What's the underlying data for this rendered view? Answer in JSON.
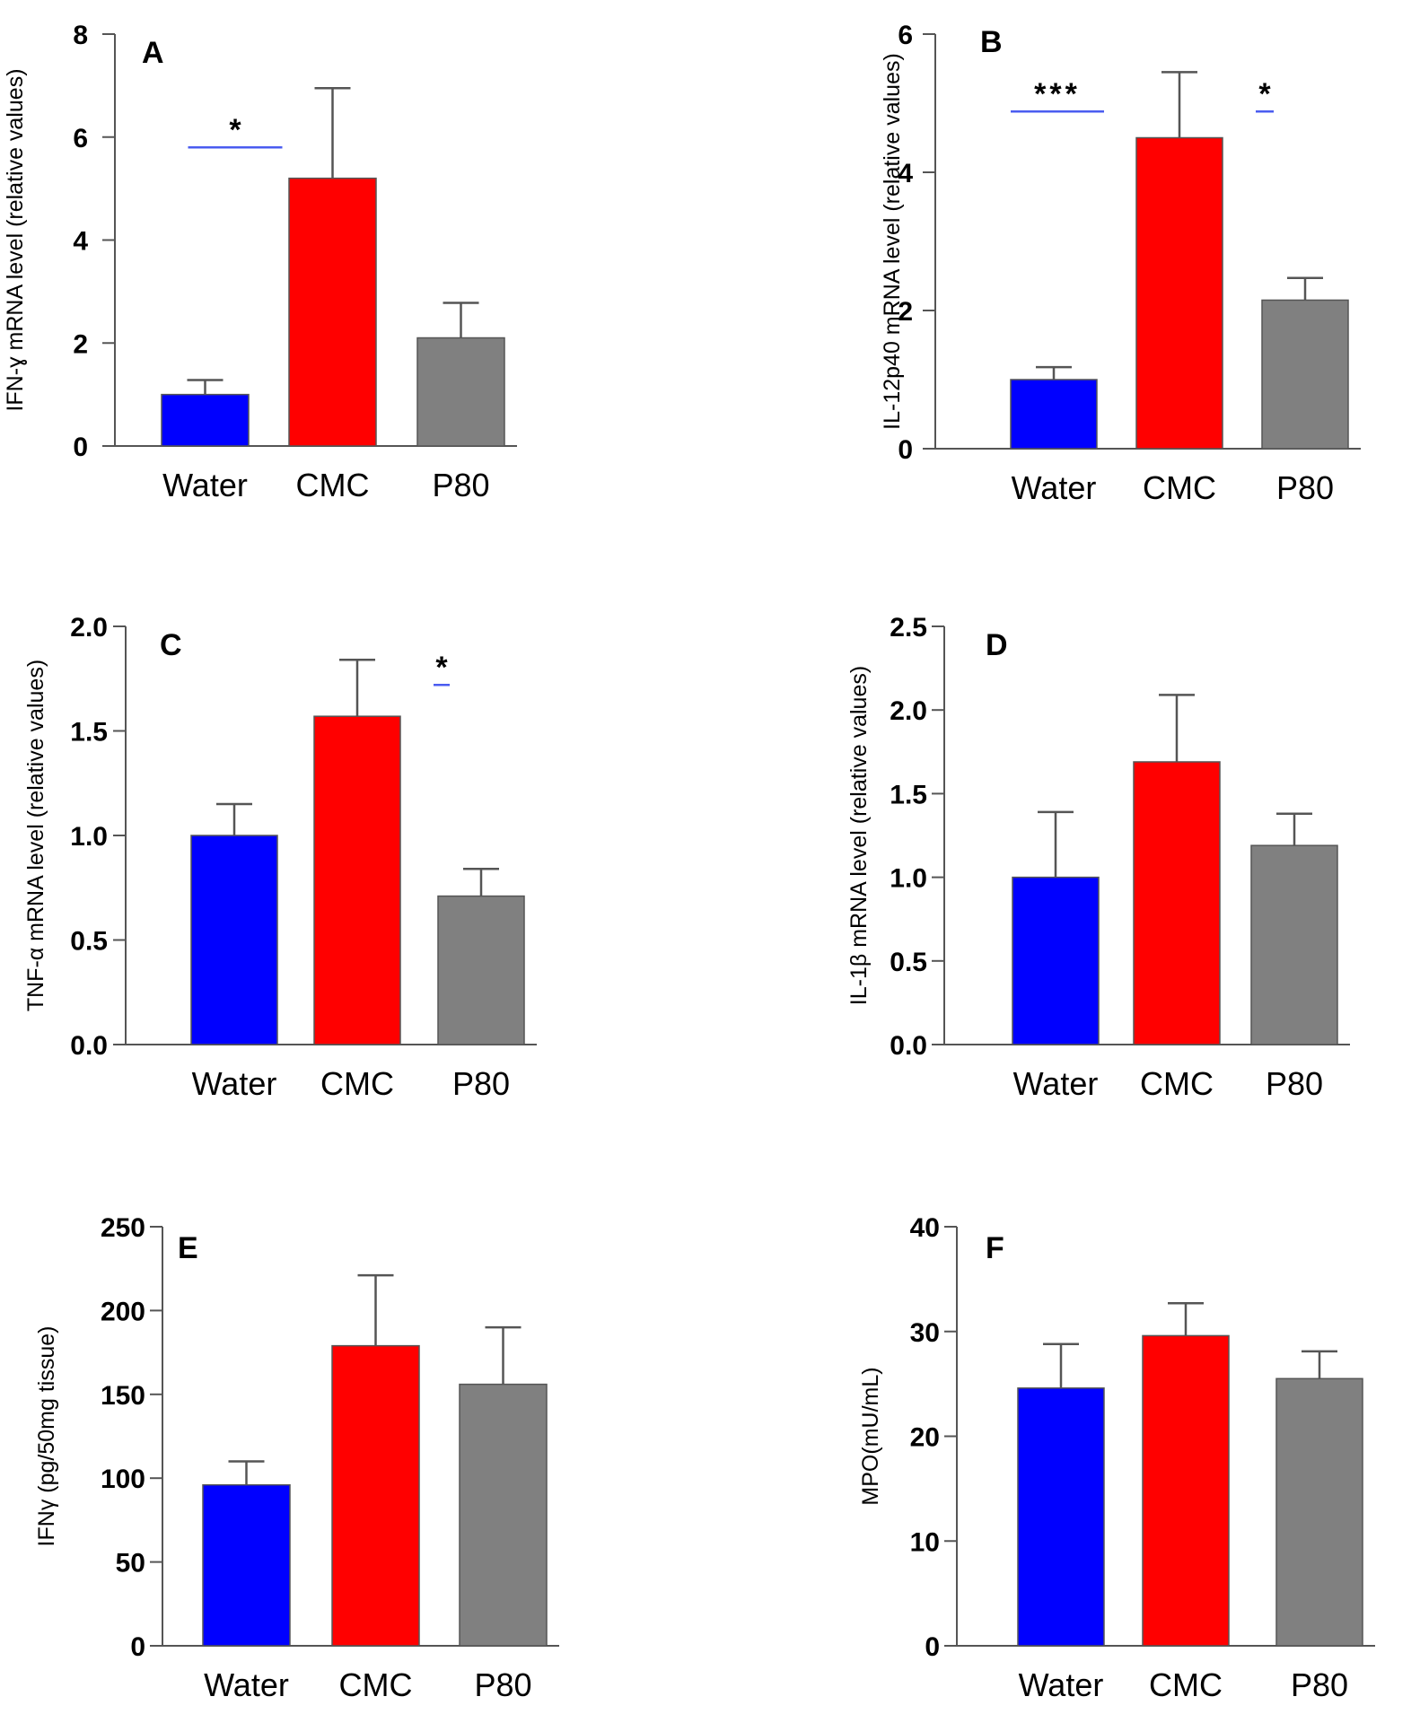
{
  "colors": {
    "Water": "#0000ff",
    "CMC": "#ff0000",
    "P80": "#808080",
    "significance_line": "#4a5cf0",
    "axis": "#555555"
  },
  "chart_data": [
    {
      "type": "bar",
      "panel": "A",
      "categories": [
        "Water",
        "CMC",
        "P80"
      ],
      "values": [
        1.0,
        5.2,
        2.1
      ],
      "errors": [
        0.28,
        1.75,
        0.68
      ],
      "ylabel": "IFN-ɣ mRNA level (relative values)",
      "ylim": [
        0,
        8
      ],
      "yticks": [
        "0",
        "2",
        "4",
        "6",
        "8"
      ],
      "significance": [
        {
          "from": "Water",
          "to": "CMC",
          "label": "*",
          "y": 5.8
        }
      ]
    },
    {
      "type": "bar",
      "panel": "B",
      "categories": [
        "Water",
        "CMC",
        "P80"
      ],
      "values": [
        1.0,
        4.5,
        2.15
      ],
      "errors": [
        0.18,
        0.95,
        0.32
      ],
      "ylabel": "IL-12p40 mRNA level (relative values)",
      "ylim": [
        0,
        6
      ],
      "yticks": [
        "0",
        "2",
        "4",
        "6"
      ],
      "significance": [
        {
          "from": "Water",
          "to": "CMC",
          "label": "***",
          "y": 4.88
        },
        {
          "from": "CMC",
          "to": "P80",
          "label": "*",
          "y": 4.88
        }
      ]
    },
    {
      "type": "bar",
      "panel": "C",
      "categories": [
        "Water",
        "CMC",
        "P80"
      ],
      "values": [
        1.0,
        1.57,
        0.71
      ],
      "errors": [
        0.15,
        0.27,
        0.13
      ],
      "ylabel": "TNF-α mRNA level (relative values)",
      "ylim": [
        0,
        2.0
      ],
      "yticks": [
        "0.0",
        "0.5",
        "1.0",
        "1.5",
        "2.0"
      ],
      "significance": [
        {
          "from": "CMC",
          "to": "P80",
          "label": "*",
          "y": 1.72
        }
      ]
    },
    {
      "type": "bar",
      "panel": "D",
      "categories": [
        "Water",
        "CMC",
        "P80"
      ],
      "values": [
        1.0,
        1.69,
        1.19
      ],
      "errors": [
        0.39,
        0.4,
        0.19
      ],
      "ylabel": "IL-1β mRNA level (relative values)",
      "ylim": [
        0,
        2.5
      ],
      "yticks": [
        "0.0",
        "0.5",
        "1.0",
        "1.5",
        "2.0",
        "2.5"
      ],
      "significance": []
    },
    {
      "type": "bar",
      "panel": "E",
      "categories": [
        "Water",
        "CMC",
        "P80"
      ],
      "values": [
        96,
        179,
        156
      ],
      "errors": [
        14,
        42,
        34
      ],
      "ylabel": "IFNγ (pg/50mg tissue)",
      "ylim": [
        0,
        250
      ],
      "yticks": [
        "0",
        "50",
        "100",
        "150",
        "200",
        "250"
      ],
      "significance": []
    },
    {
      "type": "bar",
      "panel": "F",
      "categories": [
        "Water",
        "CMC",
        "P80"
      ],
      "values": [
        24.6,
        29.6,
        25.5
      ],
      "errors": [
        4.2,
        3.1,
        2.6
      ],
      "ylabel": "MPO(mU/mL)",
      "ylim": [
        0,
        40
      ],
      "yticks": [
        "0",
        "10",
        "20",
        "30",
        "40"
      ],
      "significance": []
    }
  ]
}
